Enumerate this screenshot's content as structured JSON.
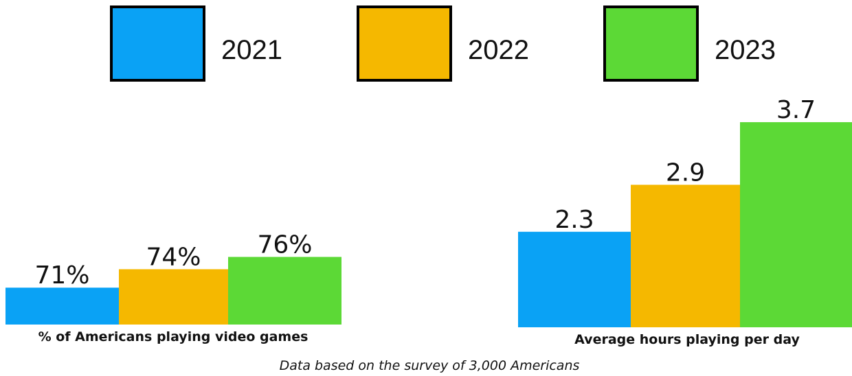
{
  "chart_data": {
    "type": "bar",
    "series": [
      {
        "name": "2021",
        "color": "#0AA2F5"
      },
      {
        "name": "2022",
        "color": "#F5B800"
      },
      {
        "name": "2023",
        "color": "#5CD936"
      }
    ],
    "panels": [
      {
        "label": "% of Americans playing video games",
        "values": [
          71,
          74,
          76
        ],
        "value_labels": [
          "71%",
          "74%",
          "76%"
        ]
      },
      {
        "label": "Average hours playing per day",
        "values": [
          2.3,
          2.9,
          3.7
        ],
        "value_labels": [
          "2.3",
          "2.9",
          "3.7"
        ]
      }
    ],
    "legend_position": "top",
    "grid": false,
    "footnote": "Data based on the survey of 3,000 Americans"
  }
}
